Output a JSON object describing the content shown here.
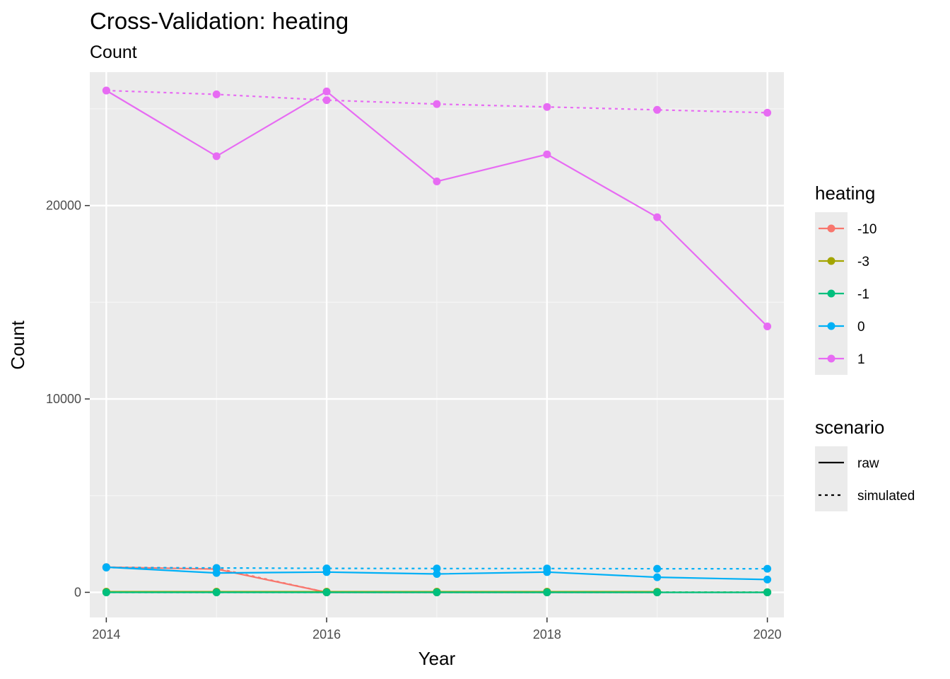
{
  "chart_data": {
    "type": "line",
    "title": "Cross-Validation: heating",
    "subtitle": "Count",
    "xlabel": "Year",
    "ylabel": "Count",
    "x": [
      2014,
      2015,
      2016,
      2017,
      2018,
      2019,
      2020
    ],
    "x_ticks": [
      "2014",
      "2016",
      "2018",
      "2020"
    ],
    "y_ticks": [
      "0",
      "10000",
      "20000"
    ],
    "xlim": [
      2013.85,
      2020.15
    ],
    "ylim": [
      -1300,
      26900
    ],
    "grid": true,
    "legend_position": "right",
    "color_legend": {
      "title": "heating",
      "entries": [
        {
          "label": "-10",
          "color": "#F8766D"
        },
        {
          "label": "-3",
          "color": "#A3A500"
        },
        {
          "label": "-1",
          "color": "#00BF7D"
        },
        {
          "label": "0",
          "color": "#00B0F6"
        },
        {
          "label": "1",
          "color": "#E76BF3"
        }
      ]
    },
    "linetype_legend": {
      "title": "scenario",
      "entries": [
        {
          "label": "raw",
          "dash": "solid"
        },
        {
          "label": "simulated",
          "dash": "dotted"
        }
      ]
    },
    "series": [
      {
        "heating": "-10",
        "scenario": "raw",
        "color": "#F8766D",
        "values": [
          1300,
          1200,
          0,
          0,
          0,
          0,
          null
        ]
      },
      {
        "heating": "-10",
        "scenario": "simulated",
        "color": "#F8766D",
        "values": [
          1300,
          1250,
          0,
          0,
          0,
          0,
          0
        ]
      },
      {
        "heating": "-3",
        "scenario": "raw",
        "color": "#A3A500",
        "values": [
          30,
          30,
          30,
          30,
          30,
          30,
          null
        ]
      },
      {
        "heating": "-3",
        "scenario": "simulated",
        "color": "#A3A500",
        "values": [
          30,
          30,
          30,
          30,
          30,
          10,
          10
        ]
      },
      {
        "heating": "0",
        "scenario": "raw",
        "color": "#00B0F6",
        "values": [
          1300,
          1000,
          1050,
          950,
          1050,
          780,
          660
        ]
      },
      {
        "heating": "0",
        "scenario": "simulated",
        "color": "#00B0F6",
        "values": [
          1280,
          1260,
          1240,
          1230,
          1230,
          1220,
          1220
        ]
      },
      {
        "heating": "-1",
        "scenario": "raw",
        "color": "#00BF7D",
        "values": [
          0,
          0,
          0,
          0,
          0,
          0,
          0
        ]
      },
      {
        "heating": "-1",
        "scenario": "simulated",
        "color": "#00BF7D",
        "values": [
          0,
          0,
          0,
          0,
          0,
          0,
          0
        ]
      },
      {
        "heating": "1",
        "scenario": "raw",
        "color": "#E76BF3",
        "values": [
          25950,
          22550,
          25900,
          21250,
          22650,
          19400,
          13750
        ]
      },
      {
        "heating": "1",
        "scenario": "simulated",
        "color": "#E76BF3",
        "values": [
          25950,
          25750,
          25450,
          25250,
          25100,
          24950,
          24800
        ]
      }
    ]
  }
}
